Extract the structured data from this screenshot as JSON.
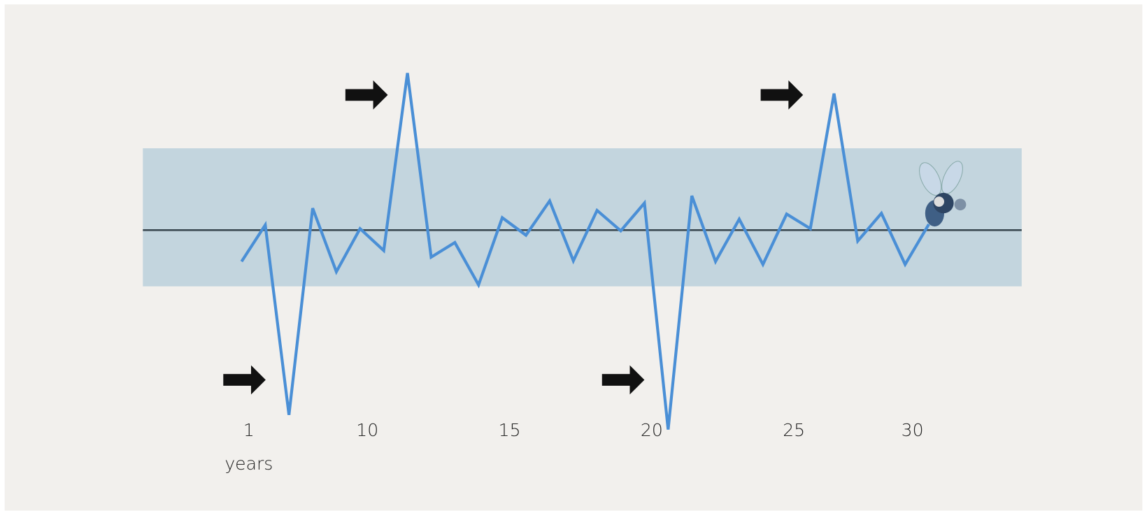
{
  "chart_data": {
    "type": "line",
    "categories": [
      "1",
      null,
      null,
      null,
      null,
      "10",
      null,
      null,
      null,
      null,
      null,
      "15",
      null,
      null,
      null,
      null,
      null,
      "20",
      null,
      null,
      null,
      null,
      null,
      "25",
      null,
      null,
      null,
      null,
      "30",
      null
    ],
    "x_label": "years",
    "series": [
      {
        "color": "#4a8fd6",
        "values": [
          -4.3,
          0.7,
          -25.3,
          3.0,
          -5.7,
          0.2,
          -2.8,
          21.5,
          -3.7,
          -1.7,
          -7.5,
          1.7,
          -0.7,
          4.0,
          -4.2,
          2.7,
          -0.1,
          3.7,
          -27.3,
          4.7,
          -4.3,
          1.5,
          -4.7,
          2.2,
          0.2,
          18.7,
          -1.5,
          2.3,
          -4.7,
          0.8
        ]
      }
    ],
    "mean_line": 0,
    "band": [
      -7.7,
      11.2
    ],
    "band_color": "#b3ccd8",
    "ylim": [
      -30,
      25
    ]
  }
}
